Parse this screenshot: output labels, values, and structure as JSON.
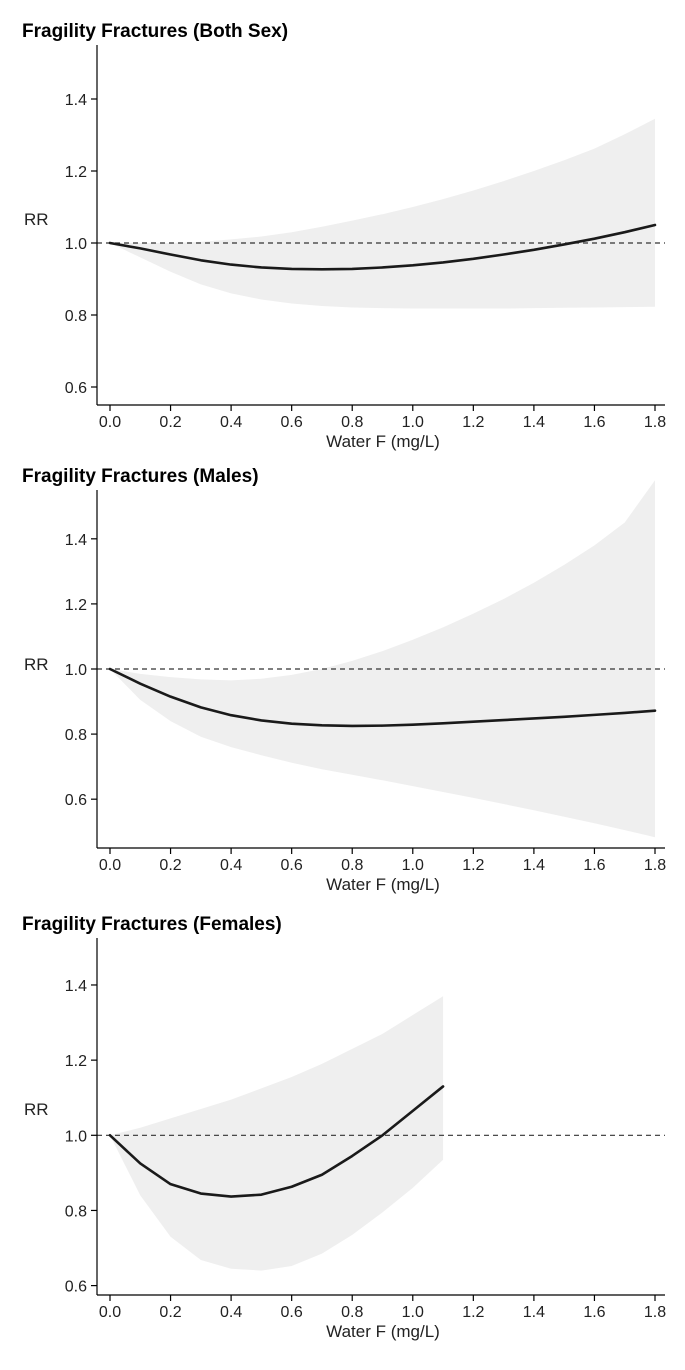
{
  "chart_data": [
    {
      "type": "line",
      "title": "Fragility Fractures (Both Sex)",
      "xlabel": "Water F (mg/L)",
      "ylabel": "RR",
      "xlim": [
        0,
        1.8
      ],
      "ylim": [
        0.55,
        1.55
      ],
      "xticks": [
        "0.0",
        "0.2",
        "0.4",
        "0.6",
        "0.8",
        "1.0",
        "1.2",
        "1.4",
        "1.6",
        "1.8"
      ],
      "yticks": [
        "0.6",
        "0.8",
        "1.0",
        "1.2",
        "1.4"
      ],
      "reference_line": 1.0,
      "grid": false,
      "x": [
        0,
        0.1,
        0.2,
        0.3,
        0.4,
        0.5,
        0.6,
        0.7,
        0.8,
        0.9,
        1.0,
        1.1,
        1.2,
        1.3,
        1.4,
        1.5,
        1.6,
        1.7,
        1.8
      ],
      "series": [
        {
          "name": "",
          "values": [
            1.0,
            0.985,
            0.968,
            0.952,
            0.94,
            0.932,
            0.928,
            0.927,
            0.928,
            0.932,
            0.938,
            0.946,
            0.956,
            0.968,
            0.981,
            0.996,
            1.012,
            1.03,
            1.05
          ]
        }
      ],
      "ci_lower": [
        1.0,
        0.96,
        0.92,
        0.885,
        0.86,
        0.843,
        0.832,
        0.825,
        0.821,
        0.819,
        0.818,
        0.818,
        0.818,
        0.818,
        0.819,
        0.82,
        0.821,
        0.822,
        0.823
      ],
      "ci_upper": [
        1.0,
        1.0,
        1.0,
        1.003,
        1.01,
        1.018,
        1.03,
        1.045,
        1.062,
        1.08,
        1.1,
        1.122,
        1.146,
        1.172,
        1.2,
        1.23,
        1.262,
        1.302,
        1.345
      ]
    },
    {
      "type": "line",
      "title": "Fragility Fractures (Males)",
      "xlabel": "Water F (mg/L)",
      "ylabel": "RR",
      "xlim": [
        0,
        1.8
      ],
      "ylim": [
        0.45,
        1.55
      ],
      "xticks": [
        "0.0",
        "0.2",
        "0.4",
        "0.6",
        "0.8",
        "1.0",
        "1.2",
        "1.4",
        "1.6",
        "1.8"
      ],
      "yticks": [
        "0.6",
        "0.8",
        "1.0",
        "1.2",
        "1.4"
      ],
      "reference_line": 1.0,
      "grid": false,
      "x": [
        0,
        0.1,
        0.2,
        0.3,
        0.4,
        0.5,
        0.6,
        0.7,
        0.8,
        0.9,
        1.0,
        1.1,
        1.2,
        1.3,
        1.4,
        1.5,
        1.6,
        1.7,
        1.8
      ],
      "series": [
        {
          "name": "",
          "values": [
            1.0,
            0.955,
            0.915,
            0.882,
            0.858,
            0.842,
            0.832,
            0.827,
            0.825,
            0.826,
            0.829,
            0.833,
            0.838,
            0.843,
            0.848,
            0.853,
            0.859,
            0.865,
            0.872
          ]
        }
      ],
      "ci_lower": [
        1.0,
        0.905,
        0.84,
        0.792,
        0.76,
        0.735,
        0.712,
        0.692,
        0.675,
        0.658,
        0.64,
        0.622,
        0.604,
        0.585,
        0.566,
        0.546,
        0.526,
        0.505,
        0.483
      ],
      "ci_upper": [
        1.0,
        0.985,
        0.975,
        0.968,
        0.965,
        0.97,
        0.982,
        1.0,
        1.025,
        1.055,
        1.09,
        1.128,
        1.17,
        1.215,
        1.265,
        1.32,
        1.38,
        1.45,
        1.58
      ]
    },
    {
      "type": "line",
      "title": "Fragility Fractures (Females)",
      "xlabel": "Water F (mg/L)",
      "ylabel": "RR",
      "xlim": [
        0,
        1.8
      ],
      "ylim": [
        0.575,
        1.525
      ],
      "xticks": [
        "0.0",
        "0.2",
        "0.4",
        "0.6",
        "0.8",
        "1.0",
        "1.2",
        "1.4",
        "1.6",
        "1.8"
      ],
      "yticks": [
        "0.6",
        "0.8",
        "1.0",
        "1.2",
        "1.4"
      ],
      "reference_line": 1.0,
      "grid": false,
      "x": [
        0,
        0.1,
        0.2,
        0.3,
        0.4,
        0.5,
        0.6,
        0.7,
        0.8,
        0.9,
        1.0,
        1.1
      ],
      "series": [
        {
          "name": "",
          "values": [
            1.0,
            0.925,
            0.87,
            0.845,
            0.837,
            0.842,
            0.863,
            0.895,
            0.945,
            1.0,
            1.065,
            1.13
          ]
        }
      ],
      "ci_lower": [
        1.0,
        0.84,
        0.73,
        0.668,
        0.645,
        0.64,
        0.652,
        0.685,
        0.735,
        0.795,
        0.86,
        0.935
      ],
      "ci_upper": [
        1.0,
        1.02,
        1.045,
        1.07,
        1.095,
        1.125,
        1.155,
        1.19,
        1.23,
        1.27,
        1.32,
        1.37
      ]
    }
  ]
}
